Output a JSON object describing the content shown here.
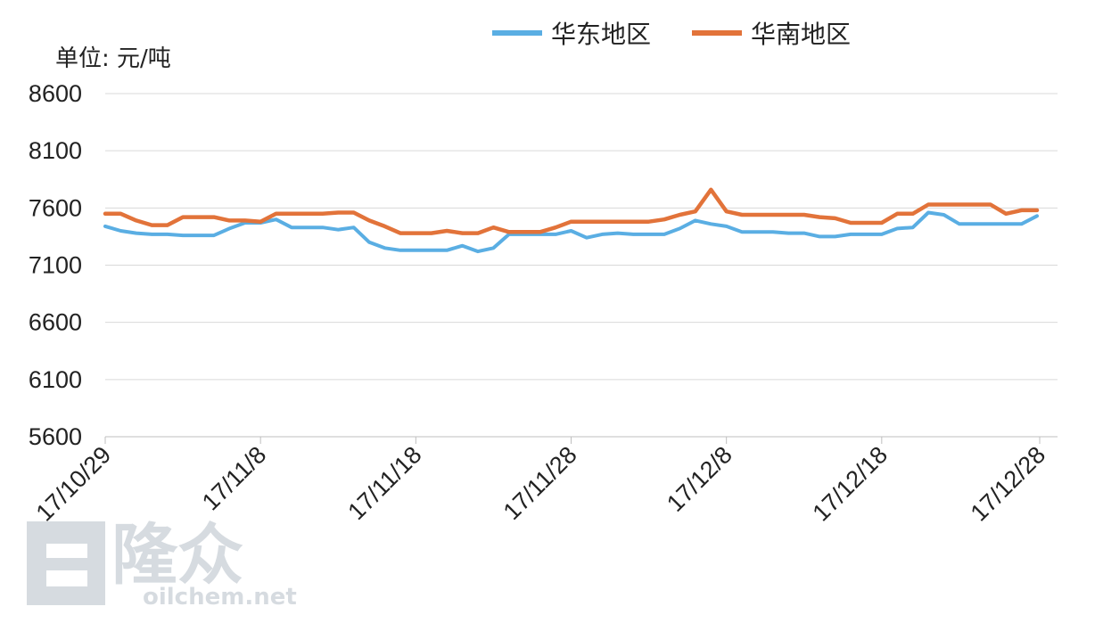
{
  "chart_data": {
    "type": "line",
    "unit_label": "单位: 元/吨",
    "ylim": [
      5600,
      8600
    ],
    "yticks": [
      5600,
      6100,
      6600,
      7100,
      7600,
      8100,
      8600
    ],
    "xtick_labels": [
      "17/10/29",
      "17/11/8",
      "17/11/18",
      "17/11/28",
      "17/12/8",
      "17/12/18",
      "17/12/28"
    ],
    "x_start_day": 0,
    "x_end_day": 60,
    "colors": {
      "华东地区": "#5aaee3",
      "华南地区": "#e2733a"
    },
    "series": [
      {
        "name": "华东地区",
        "points": [
          [
            0,
            7440
          ],
          [
            1,
            7400
          ],
          [
            2,
            7380
          ],
          [
            3,
            7370
          ],
          [
            4,
            7370
          ],
          [
            5,
            7360
          ],
          [
            6,
            7360
          ],
          [
            7,
            7360
          ],
          [
            8,
            7420
          ],
          [
            9,
            7470
          ],
          [
            10,
            7470
          ],
          [
            11,
            7500
          ],
          [
            12,
            7430
          ],
          [
            13,
            7430
          ],
          [
            14,
            7430
          ],
          [
            15,
            7410
          ],
          [
            16,
            7430
          ],
          [
            17,
            7300
          ],
          [
            18,
            7250
          ],
          [
            19,
            7230
          ],
          [
            20,
            7230
          ],
          [
            21,
            7230
          ],
          [
            22,
            7230
          ],
          [
            23,
            7270
          ],
          [
            24,
            7220
          ],
          [
            25,
            7250
          ],
          [
            26,
            7370
          ],
          [
            27,
            7370
          ],
          [
            28,
            7370
          ],
          [
            29,
            7370
          ],
          [
            30,
            7400
          ],
          [
            31,
            7340
          ],
          [
            32,
            7370
          ],
          [
            33,
            7380
          ],
          [
            34,
            7370
          ],
          [
            35,
            7370
          ],
          [
            36,
            7370
          ],
          [
            37,
            7420
          ],
          [
            38,
            7490
          ],
          [
            39,
            7460
          ],
          [
            40,
            7440
          ],
          [
            41,
            7390
          ],
          [
            42,
            7390
          ],
          [
            43,
            7390
          ],
          [
            44,
            7380
          ],
          [
            45,
            7380
          ],
          [
            46,
            7350
          ],
          [
            47,
            7350
          ],
          [
            48,
            7370
          ],
          [
            49,
            7370
          ],
          [
            50,
            7370
          ],
          [
            51,
            7420
          ],
          [
            52,
            7430
          ],
          [
            53,
            7560
          ],
          [
            54,
            7540
          ],
          [
            55,
            7460
          ],
          [
            56,
            7460
          ],
          [
            57,
            7460
          ],
          [
            58,
            7460
          ],
          [
            59,
            7460
          ],
          [
            60,
            7530
          ]
        ]
      },
      {
        "name": "华南地区",
        "points": [
          [
            0,
            7550
          ],
          [
            1,
            7550
          ],
          [
            2,
            7490
          ],
          [
            3,
            7450
          ],
          [
            4,
            7450
          ],
          [
            5,
            7520
          ],
          [
            6,
            7520
          ],
          [
            7,
            7520
          ],
          [
            8,
            7490
          ],
          [
            9,
            7490
          ],
          [
            10,
            7480
          ],
          [
            11,
            7550
          ],
          [
            12,
            7550
          ],
          [
            13,
            7550
          ],
          [
            14,
            7550
          ],
          [
            15,
            7560
          ],
          [
            16,
            7560
          ],
          [
            17,
            7490
          ],
          [
            18,
            7440
          ],
          [
            19,
            7380
          ],
          [
            20,
            7380
          ],
          [
            21,
            7380
          ],
          [
            22,
            7400
          ],
          [
            23,
            7380
          ],
          [
            24,
            7380
          ],
          [
            25,
            7430
          ],
          [
            26,
            7390
          ],
          [
            27,
            7390
          ],
          [
            28,
            7390
          ],
          [
            29,
            7430
          ],
          [
            30,
            7480
          ],
          [
            31,
            7480
          ],
          [
            32,
            7480
          ],
          [
            33,
            7480
          ],
          [
            34,
            7480
          ],
          [
            35,
            7480
          ],
          [
            36,
            7500
          ],
          [
            37,
            7540
          ],
          [
            38,
            7570
          ],
          [
            39,
            7760
          ],
          [
            40,
            7570
          ],
          [
            41,
            7540
          ],
          [
            42,
            7540
          ],
          [
            43,
            7540
          ],
          [
            44,
            7540
          ],
          [
            45,
            7540
          ],
          [
            46,
            7520
          ],
          [
            47,
            7510
          ],
          [
            48,
            7470
          ],
          [
            49,
            7470
          ],
          [
            50,
            7470
          ],
          [
            51,
            7550
          ],
          [
            52,
            7550
          ],
          [
            53,
            7630
          ],
          [
            54,
            7630
          ],
          [
            55,
            7630
          ],
          [
            56,
            7630
          ],
          [
            57,
            7630
          ],
          [
            58,
            7550
          ],
          [
            59,
            7580
          ],
          [
            60,
            7580
          ]
        ]
      }
    ]
  },
  "watermark": {
    "brand": "隆众",
    "url": "oilchem.net"
  }
}
